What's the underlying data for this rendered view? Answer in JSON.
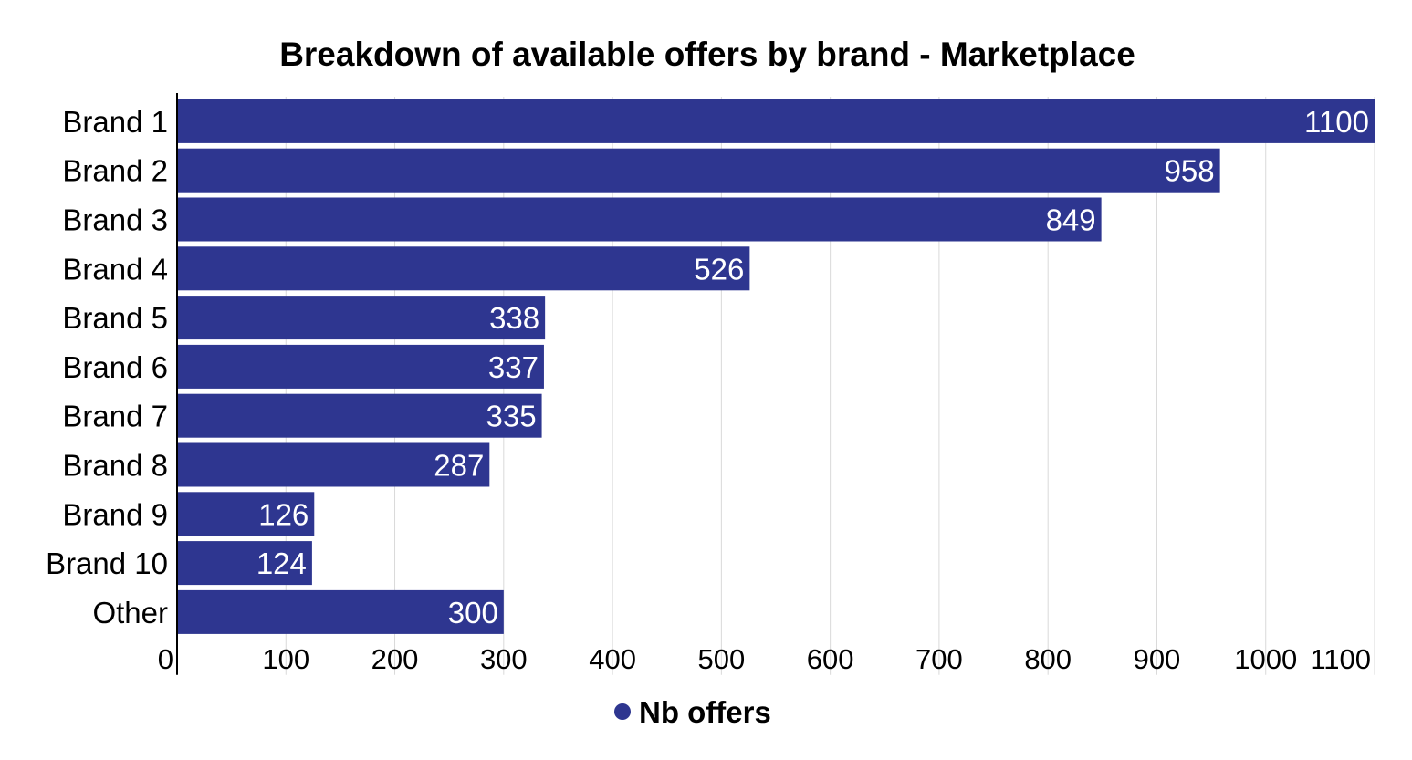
{
  "chart_data": {
    "type": "bar",
    "orientation": "horizontal",
    "title": "Breakdown of available offers by brand - Marketplace",
    "categories": [
      "Brand 1",
      "Brand 2",
      "Brand 3",
      "Brand 4",
      "Brand 5",
      "Brand 6",
      "Brand 7",
      "Brand 8",
      "Brand 9",
      "Brand 10",
      "Other"
    ],
    "series": [
      {
        "name": "Nb offers",
        "color": "#2e3690",
        "values": [
          1100,
          958,
          849,
          526,
          338,
          337,
          335,
          287,
          126,
          124,
          300
        ]
      }
    ],
    "xlim": [
      0,
      1100
    ],
    "xticks": [
      0,
      100,
      200,
      300,
      400,
      500,
      600,
      700,
      800,
      900,
      1000,
      1100
    ],
    "grid": true,
    "data_labels": true,
    "legend_position": "bottom-center"
  }
}
